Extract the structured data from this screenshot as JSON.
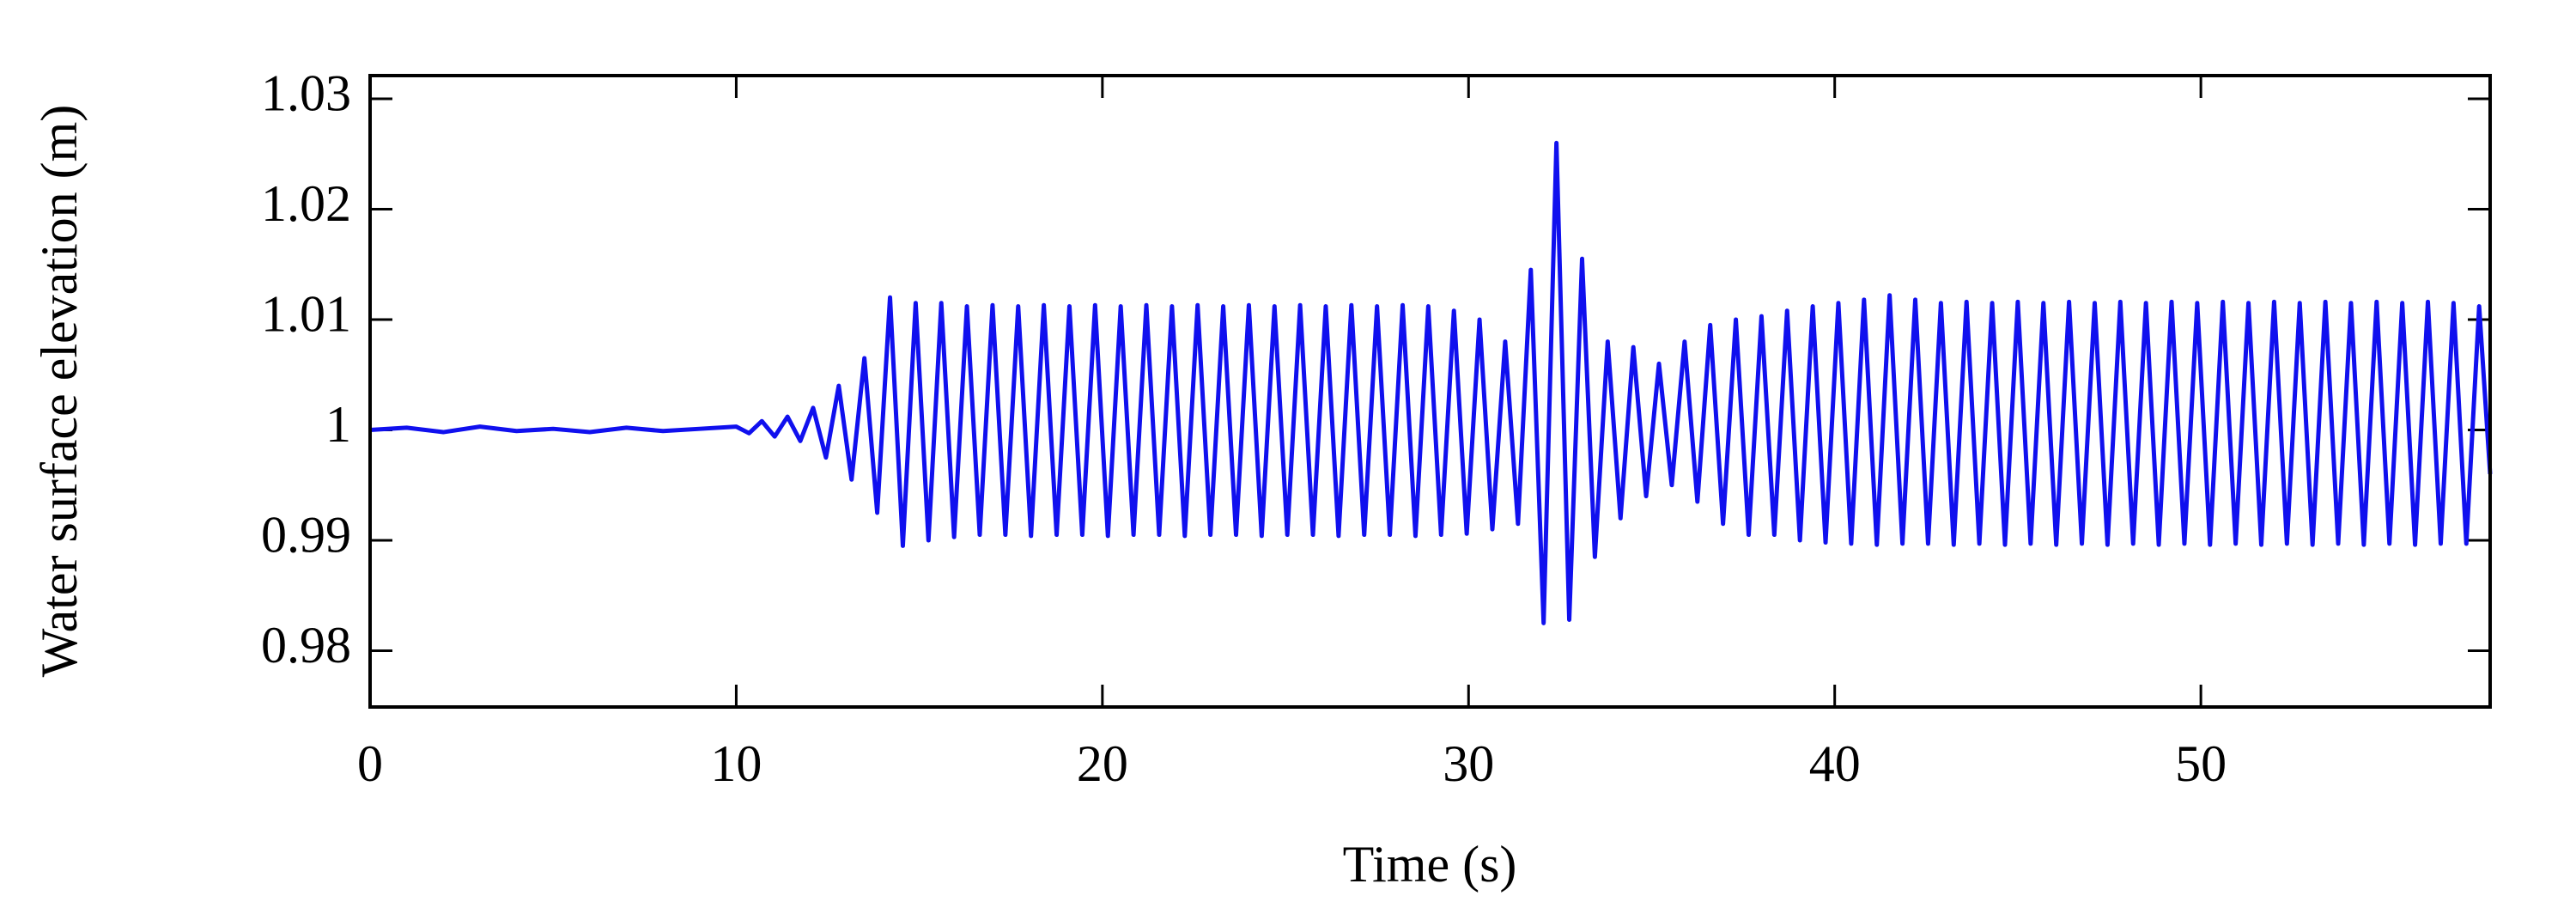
{
  "chart_data": {
    "type": "line",
    "xlabel": "Time (s)",
    "ylabel": "Water surface elevation (m)",
    "xlim": [
      0,
      57.9
    ],
    "ylim": [
      0.9749,
      1.0321
    ],
    "xticks": [
      0,
      10,
      20,
      30,
      40,
      50
    ],
    "yticks": [
      0.98,
      0.99,
      1,
      1.01,
      1.02,
      1.03
    ],
    "series": [
      {
        "color": "#1010ee",
        "x": [
          0,
          1,
          2,
          3,
          4,
          5,
          6,
          7,
          8,
          9,
          10,
          10.35,
          10.7,
          11.05,
          11.4,
          11.75,
          12.1,
          12.45,
          12.8,
          13.15,
          13.5,
          13.85,
          14.2,
          14.55,
          14.9,
          15.25,
          15.6,
          15.95,
          16.3,
          16.65,
          17,
          17.35,
          17.7,
          18.05,
          18.4,
          18.75,
          19.1,
          19.45,
          19.8,
          20.15,
          20.5,
          20.85,
          21.2,
          21.55,
          21.9,
          22.25,
          22.6,
          22.95,
          23.3,
          23.65,
          24,
          24.35,
          24.7,
          25.05,
          25.4,
          25.75,
          26.1,
          26.45,
          26.8,
          27.15,
          27.5,
          27.85,
          28.2,
          28.55,
          28.9,
          29.25,
          29.6,
          29.95,
          30.3,
          30.65,
          31,
          31.35,
          31.7,
          32.05,
          32.4,
          32.75,
          33.1,
          33.45,
          33.8,
          34.15,
          34.5,
          34.85,
          35.2,
          35.55,
          35.9,
          36.25,
          36.6,
          36.95,
          37.3,
          37.65,
          38,
          38.35,
          38.7,
          39.05,
          39.4,
          39.75,
          40.1,
          40.45,
          40.8,
          41.15,
          41.5,
          41.85,
          42.2,
          42.55,
          42.9,
          43.25,
          43.6,
          43.95,
          44.3,
          44.65,
          45,
          45.35,
          45.7,
          46.05,
          46.4,
          46.75,
          47.1,
          47.45,
          47.8,
          48.15,
          48.5,
          48.85,
          49.2,
          49.55,
          49.9,
          50.25,
          50.6,
          50.95,
          51.3,
          51.65,
          52,
          52.35,
          52.7,
          53.05,
          53.4,
          53.75,
          54.1,
          54.45,
          54.8,
          55.15,
          55.5,
          55.85,
          56.2,
          56.55,
          56.9,
          57.25,
          57.6,
          57.9
        ],
        "values": [
          1.0,
          1.0002,
          0.9998,
          1.0003,
          0.9999,
          1.0001,
          0.9998,
          1.0002,
          0.9999,
          1.0001,
          1.0003,
          0.9997,
          1.0008,
          0.9994,
          1.0012,
          0.999,
          1.002,
          0.9975,
          1.004,
          0.9955,
          1.0065,
          0.9925,
          1.012,
          0.9895,
          1.0115,
          0.99,
          1.0115,
          0.9903,
          1.0112,
          0.9905,
          1.0113,
          0.9905,
          1.0112,
          0.9904,
          1.0113,
          0.9905,
          1.0112,
          0.9905,
          1.0113,
          0.9904,
          1.0112,
          0.9905,
          1.0113,
          0.9905,
          1.0112,
          0.9904,
          1.0113,
          0.9905,
          1.0112,
          0.9905,
          1.0113,
          0.9904,
          1.0112,
          0.9905,
          1.0113,
          0.9905,
          1.0112,
          0.9904,
          1.0113,
          0.9905,
          1.0112,
          0.9905,
          1.0113,
          0.9904,
          1.0112,
          0.9905,
          1.0108,
          0.9906,
          1.01,
          0.991,
          1.008,
          0.9915,
          1.0145,
          0.9825,
          1.026,
          0.9828,
          1.0155,
          0.9885,
          1.008,
          0.992,
          1.0075,
          0.994,
          1.006,
          0.995,
          1.008,
          0.9935,
          1.0095,
          0.9915,
          1.01,
          0.9905,
          1.0103,
          0.9905,
          1.0108,
          0.99,
          1.0112,
          0.9898,
          1.0115,
          0.9897,
          1.0118,
          0.9896,
          1.0122,
          0.9897,
          1.0118,
          0.9897,
          1.0115,
          0.9896,
          1.0116,
          0.9897,
          1.0115,
          0.9896,
          1.0116,
          0.9897,
          1.0115,
          0.9896,
          1.0116,
          0.9897,
          1.0115,
          0.9896,
          1.0116,
          0.9897,
          1.0115,
          0.9896,
          1.0116,
          0.9897,
          1.0115,
          0.9896,
          1.0116,
          0.9897,
          1.0115,
          0.9896,
          1.0116,
          0.9897,
          1.0115,
          0.9896,
          1.0116,
          0.9897,
          1.0115,
          0.9896,
          1.0116,
          0.9897,
          1.0115,
          0.9896,
          1.0116,
          0.9897,
          1.0115,
          0.9897,
          1.0112,
          0.996
        ]
      }
    ]
  }
}
